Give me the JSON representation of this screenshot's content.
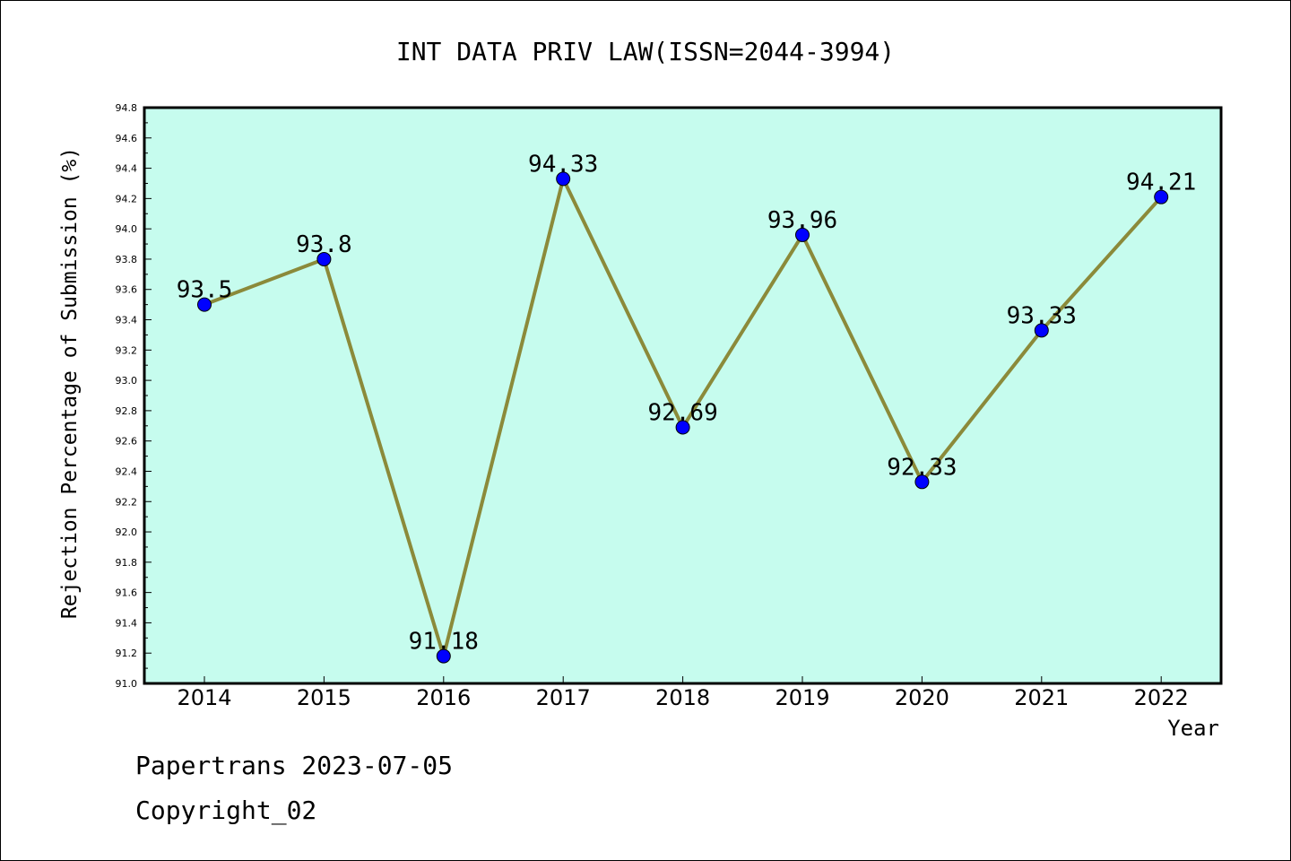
{
  "chart_data": {
    "type": "line",
    "title": "INT DATA PRIV LAW(ISSN=2044-3994)",
    "xlabel": "Year",
    "ylabel": "Rejection Percentage of Submission (%)",
    "categories": [
      "2014",
      "2015",
      "2016",
      "2017",
      "2018",
      "2019",
      "2020",
      "2021",
      "2022"
    ],
    "values": [
      93.5,
      93.8,
      91.18,
      94.33,
      92.69,
      93.96,
      92.33,
      93.33,
      94.21
    ],
    "data_labels": [
      "93.5",
      "93.8",
      "91.18",
      "94.33",
      "92.69",
      "93.96",
      "92.33",
      "93.33",
      "94.21"
    ],
    "ylim": [
      91.0,
      94.8
    ],
    "yticks": [
      "91.0",
      "91.2",
      "91.4",
      "91.6",
      "91.8",
      "92.0",
      "92.2",
      "92.4",
      "92.6",
      "92.8",
      "93.0",
      "93.2",
      "93.4",
      "93.6",
      "93.8",
      "94.0",
      "94.2",
      "94.4",
      "94.6",
      "94.8"
    ],
    "grid": false,
    "legend": "none",
    "colors": {
      "plot_background": "#c6fcee",
      "line": "#8b8a3a",
      "marker": "#0000ff"
    }
  },
  "footer": {
    "line1": "Papertrans 2023-07-05",
    "line2": "Copyright_02"
  }
}
